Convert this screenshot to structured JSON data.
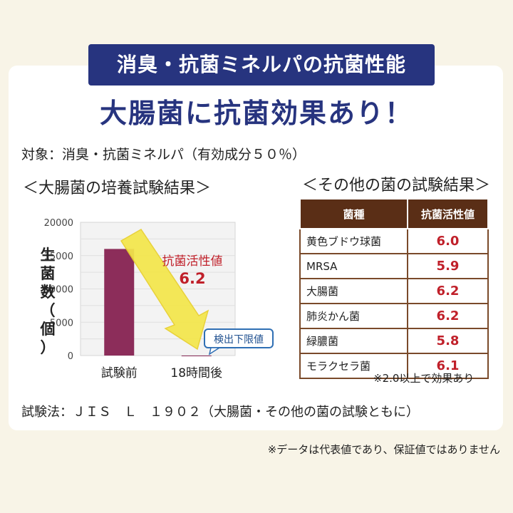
{
  "banner": "消臭・抗菌ミネルパの抗菌性能",
  "headline": "大腸菌に抗菌効果あり！",
  "target": "対象：消臭・抗菌ミネルパ（有効成分５０％）",
  "left_title": "＜大腸菌の培養試験結果＞",
  "right_title": "＜その他の菌の試験結果＞",
  "ylabel_chars": [
    "生",
    "菌",
    "数",
    "（",
    "個",
    "）"
  ],
  "chart_annotation": {
    "label": "抗菌活性値",
    "value": "6.2",
    "detection_limit": "検出下限値"
  },
  "chart_data": {
    "type": "bar",
    "title": "＜大腸菌の培養試験結果＞",
    "categories": [
      "試験前",
      "18時間後"
    ],
    "values": [
      16000,
      0
    ],
    "ylabel": "生菌数（個）",
    "ylim": [
      0,
      20000
    ],
    "yticks": [
      0,
      5000,
      10000,
      15000,
      20000
    ],
    "bar_color": "#8c2d5a",
    "grid": true
  },
  "table": {
    "headers": [
      "菌種",
      "抗菌活性値"
    ],
    "rows": [
      [
        "黄色ブドウ球菌",
        "6.0"
      ],
      [
        "MRSA",
        "5.9"
      ],
      [
        "大腸菌",
        "6.2"
      ],
      [
        "肺炎かん菌",
        "6.2"
      ],
      [
        "緑膿菌",
        "5.8"
      ],
      [
        "モラクセラ菌",
        "6.1"
      ]
    ]
  },
  "table_note": "※2.0以上で効果あり",
  "method": "試験法：ＪＩＳ　Ｌ　１９０２（大腸菌・その他の菌の試験ともに）",
  "disclaimer": "※データは代表値であり、保証値ではありません",
  "colors": {
    "navy": "#27347f",
    "brown": "#5a2e16",
    "red": "#c0202a",
    "bar": "#8c2d5a",
    "arrow": "#f4e74a",
    "limit_box": "#2f6fb4"
  }
}
